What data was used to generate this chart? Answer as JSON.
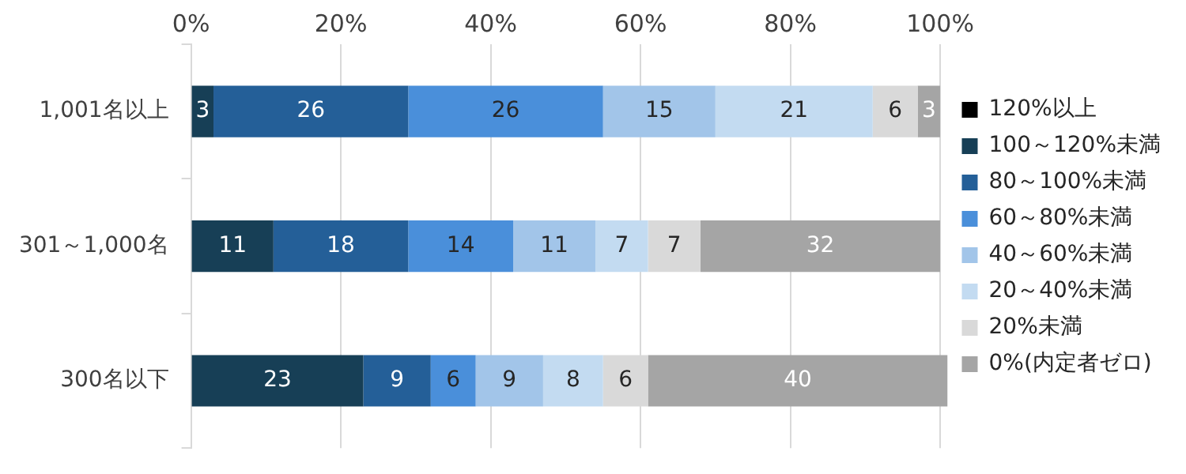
{
  "chart_data": {
    "type": "bar",
    "orientation": "horizontal",
    "stacked": true,
    "categories": [
      "1,001名以上",
      "301～1,000名",
      "300名以下"
    ],
    "series": [
      {
        "name": "120%以上",
        "color": "#000000",
        "values": [
          0,
          0,
          0
        ],
        "value_labels": [
          null,
          null,
          null
        ]
      },
      {
        "name": "100～120%未満",
        "color": "#173f56",
        "values": [
          3,
          11,
          23
        ],
        "value_labels": [
          "3",
          "11",
          "23"
        ]
      },
      {
        "name": "80～100%未満",
        "color": "#245f98",
        "values": [
          26,
          18,
          9
        ],
        "value_labels": [
          "26",
          "18",
          "9"
        ]
      },
      {
        "name": "60～80%未満",
        "color": "#4a8fda",
        "values": [
          26,
          14,
          6
        ],
        "value_labels": [
          "26",
          "14",
          "6"
        ]
      },
      {
        "name": "40～60%未満",
        "color": "#a2c5e9",
        "values": [
          15,
          11,
          9
        ],
        "value_labels": [
          "15",
          "11",
          "9"
        ]
      },
      {
        "name": "20～40%未満",
        "color": "#c3dbf1",
        "values": [
          21,
          7,
          8
        ],
        "value_labels": [
          "21",
          "7",
          "8"
        ]
      },
      {
        "name": "20%未満",
        "color": "#d9d9d9",
        "values": [
          6,
          7,
          6
        ],
        "value_labels": [
          "6",
          "7",
          "6"
        ]
      },
      {
        "name": "0%(内定者ゼロ)",
        "color": "#a5a5a5",
        "values": [
          3,
          32,
          40
        ],
        "value_labels": [
          "3",
          "32",
          "40"
        ]
      }
    ],
    "xlim": [
      0,
      101
    ],
    "xticks": [
      {
        "value": 0,
        "label": "0%"
      },
      {
        "value": 20,
        "label": "20%"
      },
      {
        "value": 40,
        "label": "40%"
      },
      {
        "value": 60,
        "label": "60%"
      },
      {
        "value": 80,
        "label": "80%"
      },
      {
        "value": 100,
        "label": "100%"
      }
    ],
    "grid": "x",
    "legend": "right"
  }
}
